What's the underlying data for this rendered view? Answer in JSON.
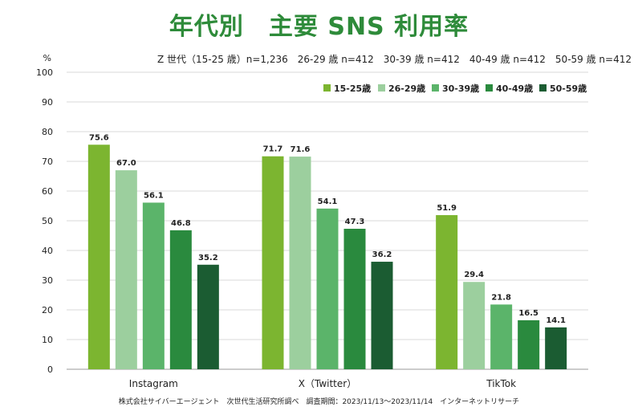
{
  "chart_data": {
    "type": "bar",
    "title": "年代別　主要 SNS 利用率",
    "subtitle": "Z 世代（15-25 歳）n=1,236　26-29 歳 n=412　30-39 歳 n=412　40-49 歳 n=412　50-59 歳 n=412",
    "ylabel": "%",
    "ylim": [
      0,
      100
    ],
    "yticks": [
      0,
      10,
      20,
      30,
      40,
      50,
      60,
      70,
      80,
      90,
      100
    ],
    "grid": true,
    "legend_position": "top-right",
    "categories": [
      "Instagram",
      "X（Twitter）",
      "TikTok"
    ],
    "series": [
      {
        "name": "15-25歳",
        "color": "#7cb530",
        "values": [
          75.6,
          71.7,
          51.9
        ],
        "labels": [
          "75.6",
          "71.7",
          "51.9"
        ]
      },
      {
        "name": "26-29歳",
        "color": "#9ccf9e",
        "values": [
          67.0,
          71.6,
          29.4
        ],
        "labels": [
          "67.0",
          "71.6",
          "29.4"
        ]
      },
      {
        "name": "30-39歳",
        "color": "#5bb46a",
        "values": [
          56.1,
          54.1,
          21.8
        ],
        "labels": [
          "56.1",
          "54.1",
          "21.8"
        ]
      },
      {
        "name": "40-49歳",
        "color": "#2a8a3e",
        "values": [
          46.8,
          47.3,
          16.5
        ],
        "labels": [
          "46.8",
          "47.3",
          "16.5"
        ]
      },
      {
        "name": "50-59歳",
        "color": "#1b5c32",
        "values": [
          35.2,
          36.2,
          14.1
        ],
        "labels": [
          "35.2",
          "36.2",
          "14.1"
        ]
      }
    ],
    "source": "株式会社サイバーエージェント　次世代生活研究所調べ　調査期間：2023/11/13〜2023/11/14　インターネットリサーチ"
  }
}
